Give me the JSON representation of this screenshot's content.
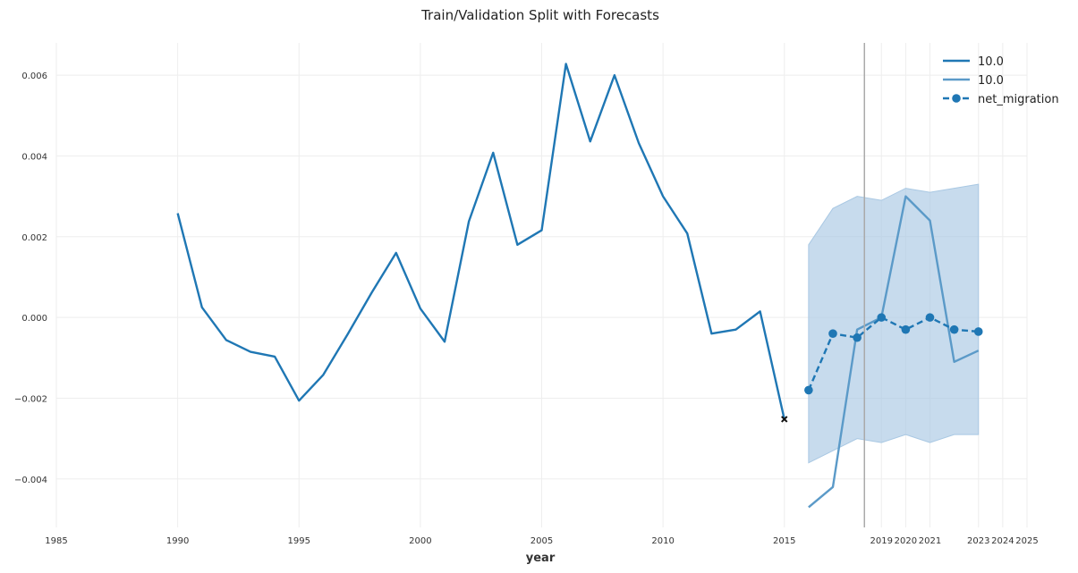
{
  "chart_data": {
    "type": "line",
    "title": "Train/Validation Split with Forecasts",
    "xlabel": "year",
    "ylabel": "",
    "xlim": [
      1985,
      2025
    ],
    "ylim": [
      -0.0052,
      0.0068
    ],
    "x_ticks": [
      1985,
      1990,
      1995,
      2000,
      2005,
      2010,
      2015,
      2019,
      2020,
      2021,
      2023,
      2024,
      2025
    ],
    "y_ticks": [
      {
        "value": 0.006,
        "label": "0.006"
      },
      {
        "value": 0.004,
        "label": "0.004"
      },
      {
        "value": 0.002,
        "label": "0.002"
      },
      {
        "value": 0.0,
        "label": "0.000"
      },
      {
        "value": -0.002,
        "label": "−0.002"
      },
      {
        "value": -0.004,
        "label": "−0.004"
      }
    ],
    "grid": true,
    "legend_position": "top-right",
    "vertical_line_x": 2018.3,
    "colors": {
      "train": "#1f77b4",
      "forecast": "#5b9ac8",
      "band": "#a9c8e3",
      "validation": "#1f77b4",
      "vline": "#aaaaaa",
      "grid": "#eeeeee",
      "marker": "#111111"
    },
    "series": [
      {
        "name": "10.0",
        "style": "solid",
        "x": [
          1990,
          1991,
          1992,
          1993,
          1994,
          1995,
          1996,
          1997,
          1998,
          1999,
          2000,
          2001,
          2002,
          2003,
          2004,
          2005,
          2006,
          2007,
          2008,
          2009,
          2010,
          2011,
          2012,
          2013,
          2014,
          2015
        ],
        "values": [
          0.00258,
          0.00025,
          -0.00056,
          -0.00085,
          -0.00097,
          -0.00206,
          -0.00142,
          -0.00042,
          0.00062,
          0.0016,
          0.00022,
          -0.0006,
          0.00238,
          0.00408,
          0.0018,
          0.00216,
          0.00628,
          0.00436,
          0.006,
          0.00432,
          0.003,
          0.00208,
          -0.0004,
          -0.0003,
          0.00015,
          -0.00252
        ]
      },
      {
        "name": "10.0",
        "style": "solid-light",
        "x": [
          2016,
          2017,
          2018,
          2019,
          2020,
          2021,
          2022,
          2023
        ],
        "values": [
          -0.0047,
          -0.0042,
          -0.0003,
          0.0,
          0.003,
          0.0024,
          -0.0011,
          -0.00082
        ],
        "band_upper": [
          0.0018,
          0.0027,
          0.003,
          0.0029,
          0.0032,
          0.0031,
          0.0032,
          0.0033
        ],
        "band_lower": [
          -0.0036,
          -0.0033,
          -0.003,
          -0.0031,
          -0.0029,
          -0.0031,
          -0.0029,
          -0.0029
        ]
      },
      {
        "name": "net_migration",
        "style": "dashed-markers",
        "x": [
          2016,
          2017,
          2018,
          2019,
          2020,
          2021,
          2022,
          2023
        ],
        "values": [
          -0.0018,
          -0.0004,
          -0.0005,
          0.0,
          -0.0003,
          0.0,
          -0.0003,
          -0.00035
        ]
      }
    ],
    "end_marker": {
      "x": 2015,
      "value": -0.00252
    }
  }
}
